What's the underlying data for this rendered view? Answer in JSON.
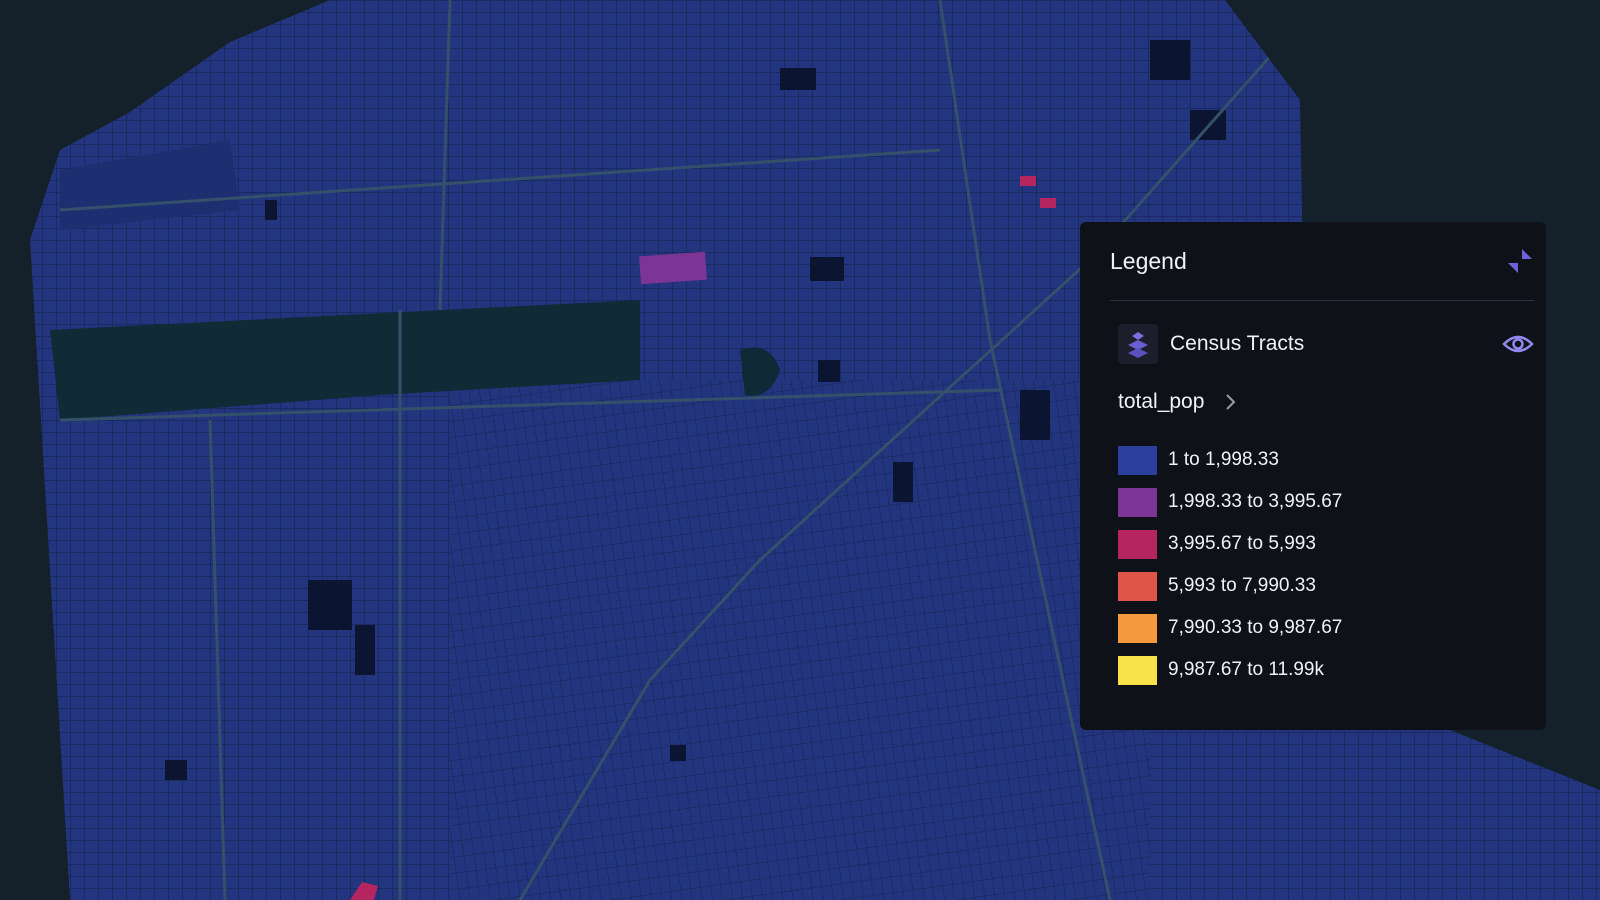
{
  "legend": {
    "title": "Legend",
    "layer": {
      "name": "Census Tracts",
      "attribute": "total_pop",
      "items": [
        {
          "label": "1 to 1,998.33",
          "color": "#2b3f9d"
        },
        {
          "label": "1,998.33 to 3,995.67",
          "color": "#7d3595"
        },
        {
          "label": "3,995.67 to 5,993",
          "color": "#b5255f"
        },
        {
          "label": "5,993 to 7,990.33",
          "color": "#e0554a"
        },
        {
          "label": "7,990.33 to 9,987.67",
          "color": "#f39a3c"
        },
        {
          "label": "9,987.67 to 11.99k",
          "color": "#f8e24a"
        }
      ]
    }
  }
}
